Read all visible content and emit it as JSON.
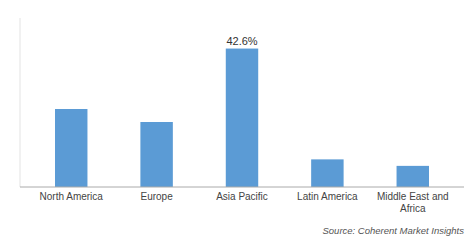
{
  "chart_data": {
    "type": "bar",
    "categories": [
      "North America",
      "Europe",
      "Asia Pacific",
      "Latin America",
      "Middle East and\nAfrica"
    ],
    "values": [
      24.0,
      20.0,
      42.6,
      8.5,
      6.5
    ],
    "color": "#5B9BD5",
    "ylim": [
      0,
      52
    ],
    "grid": false,
    "tick_labels": "x",
    "annotations": [
      {
        "text": "42.6%",
        "category": "Asia Pacific"
      }
    ],
    "source": "Source: Coherent Market Insights"
  }
}
